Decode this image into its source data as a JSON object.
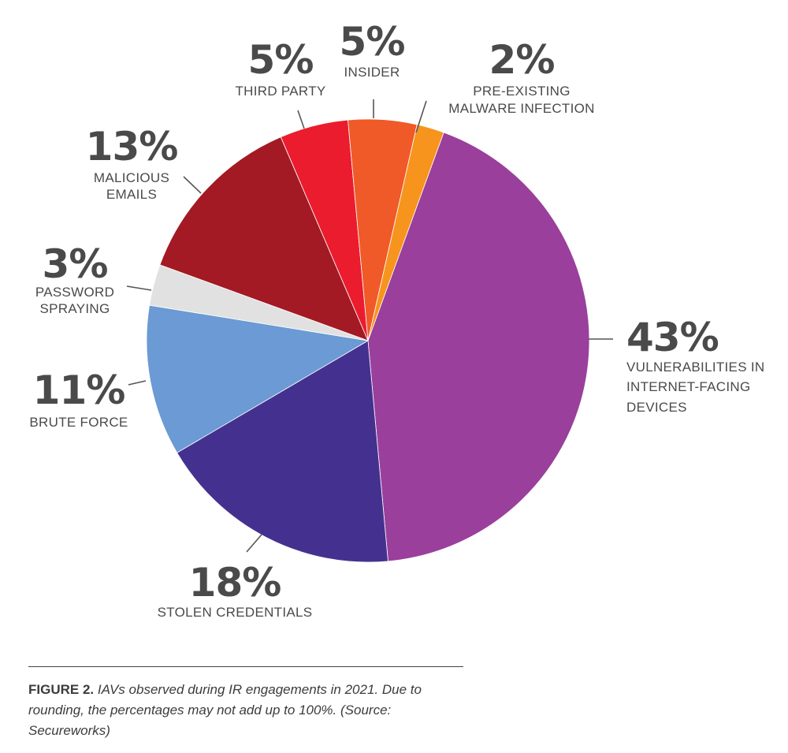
{
  "chart_data": {
    "type": "pie",
    "start_angle_deg": 20,
    "direction": "clockwise",
    "slices": [
      {
        "label_lines": [
          "VULNERABILITIES IN",
          "INTERNET-FACING",
          "DEVICES"
        ],
        "value": 43,
        "display": "43%",
        "color": "#9a3f9c"
      },
      {
        "label_lines": [
          "STOLEN CREDENTIALS"
        ],
        "value": 18,
        "display": "18%",
        "color": "#44318f"
      },
      {
        "label_lines": [
          "BRUTE FORCE"
        ],
        "value": 11,
        "display": "11%",
        "color": "#6b9ad4"
      },
      {
        "label_lines": [
          "PASSWORD",
          "SPRAYING"
        ],
        "value": 3,
        "display": "3%",
        "color": "#e1e1e1"
      },
      {
        "label_lines": [
          "MALICIOUS",
          "EMAILS"
        ],
        "value": 13,
        "display": "13%",
        "color": "#a31a24"
      },
      {
        "label_lines": [
          "THIRD PARTY"
        ],
        "value": 5,
        "display": "5%",
        "color": "#eb1c2d"
      },
      {
        "label_lines": [
          "INSIDER"
        ],
        "value": 5,
        "display": "5%",
        "color": "#f05a28"
      },
      {
        "label_lines": [
          "PRE-EXISTING",
          "MALWARE INFECTION"
        ],
        "value": 2,
        "display": "2%",
        "color": "#f7941d"
      }
    ]
  },
  "caption": {
    "prefix": "FIGURE 2.",
    "text": " IAVs observed during IR engagements in 2021. Due to rounding, the percentages may not add up to 100%. (Source: Secureworks)"
  }
}
